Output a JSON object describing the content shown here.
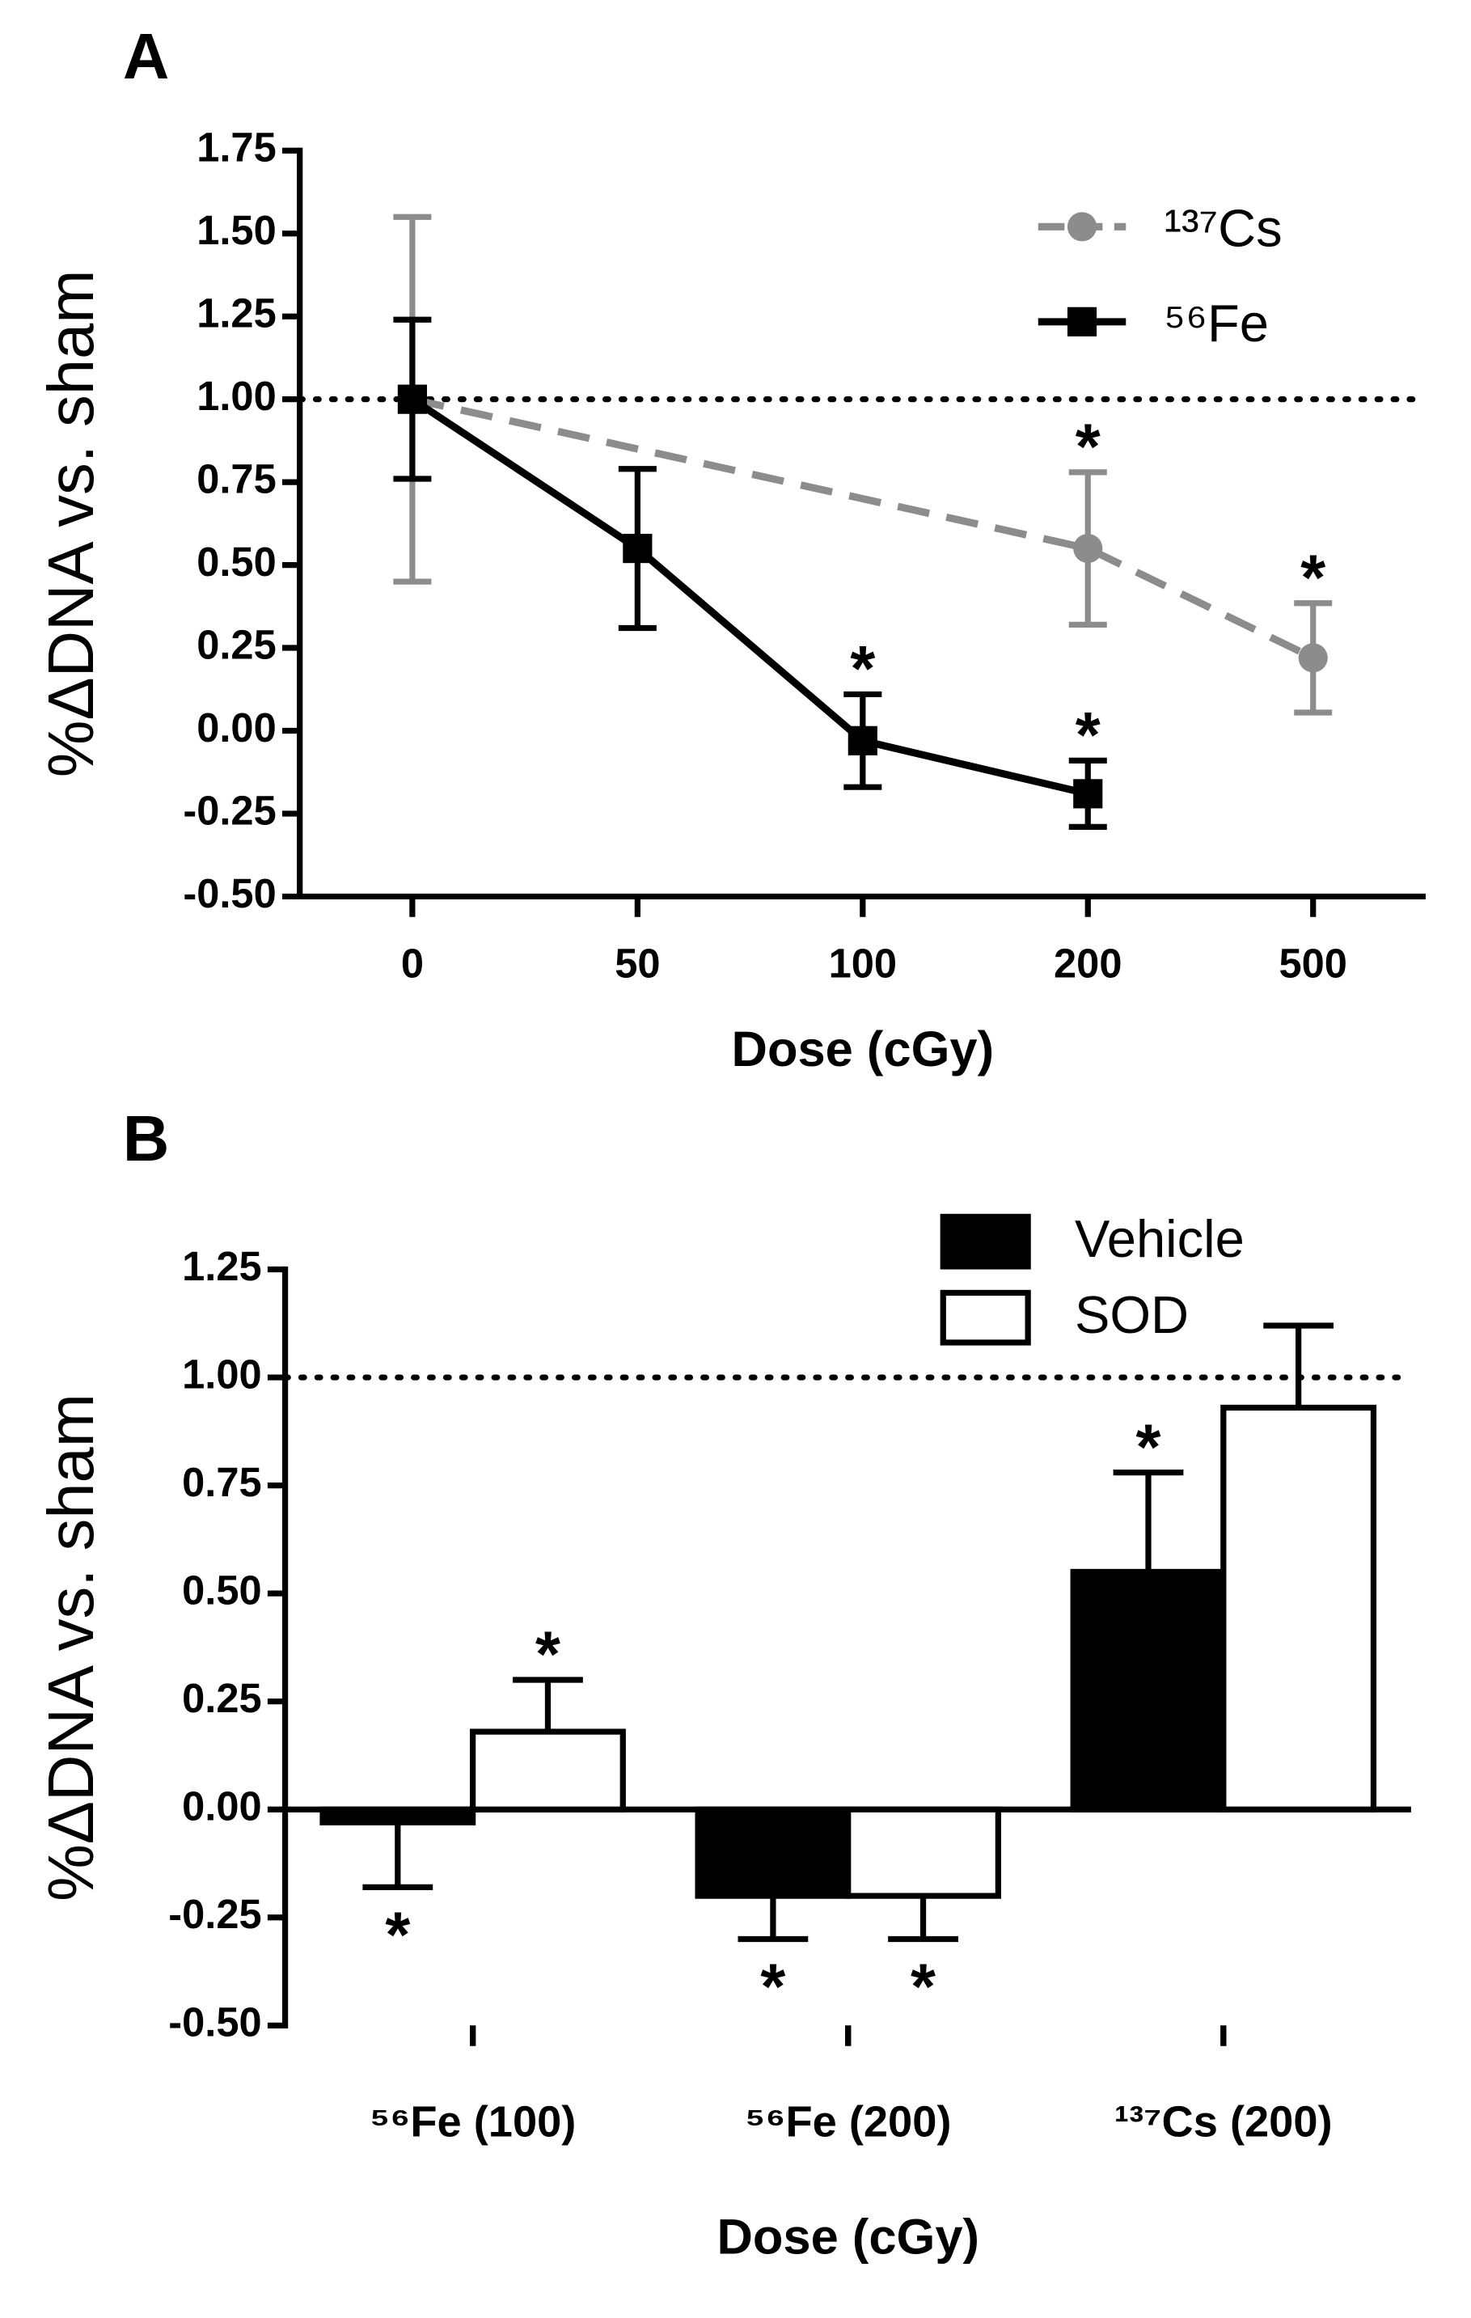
{
  "chart_data": [
    {
      "type": "line",
      "panel": "A",
      "xlabel": "Dose (cGy)",
      "ylabel": "%ΔDNA vs. sham",
      "categories": [
        "0",
        "50",
        "100",
        "200",
        "500"
      ],
      "ylim": [
        -0.5,
        1.75
      ],
      "yticks": [
        {
          "value": -0.5,
          "label": "-0.50"
        },
        -0.25,
        {
          "value": 0,
          "label": "0.00"
        },
        0.25,
        {
          "value": 0.5,
          "label": "0.50"
        },
        0.75,
        {
          "value": 1,
          "label": "1.00"
        },
        1.25,
        {
          "value": 1.5,
          "label": "1.50"
        },
        1.75
      ],
      "reference_line": 1,
      "series": [
        {
          "name": "¹³⁷Cs",
          "color": "#8c8c8c",
          "marker": "circle",
          "dashed": true,
          "x": [
            "0",
            "200",
            "500"
          ],
          "values": [
            1.0,
            0.55,
            0.22
          ],
          "errors": [
            0.55,
            0.23,
            0.165
          ],
          "significance": [
            null,
            "*",
            "*"
          ]
        },
        {
          "name": "⁵⁶Fe",
          "color": "#000000",
          "marker": "square",
          "dashed": false,
          "x": [
            "0",
            "50",
            "100",
            "200"
          ],
          "values": [
            1.0,
            0.55,
            -0.03,
            -0.19
          ],
          "errors": [
            0.24,
            0.24,
            0.14,
            0.1
          ],
          "significance": [
            null,
            null,
            "*",
            "*"
          ]
        }
      ]
    },
    {
      "type": "bar",
      "panel": "B",
      "xlabel": "Dose (cGy)",
      "ylabel": "%ΔDNA vs. sham",
      "categories": [
        "⁵⁶Fe (100)",
        "⁵⁶Fe (200)",
        "¹³⁷Cs (200)"
      ],
      "ylim": [
        -0.5,
        1.25
      ],
      "yticks": [
        {
          "value": -0.5,
          "label": "-0.50"
        },
        -0.25,
        {
          "value": 0,
          "label": "0.00"
        },
        0.25,
        {
          "value": 0.5,
          "label": "0.50"
        },
        0.75,
        {
          "value": 1,
          "label": "1.00"
        },
        1.25
      ],
      "reference_line": 1,
      "series": [
        {
          "name": "Vehicle",
          "color": "#000000",
          "values": [
            -0.03,
            -0.2,
            0.55
          ],
          "errors": [
            0.15,
            0.1,
            0.23
          ],
          "significance": [
            "*",
            "*",
            "*"
          ]
        },
        {
          "name": "SOD",
          "color": "#ffffff",
          "values": [
            0.18,
            -0.2,
            0.93
          ],
          "errors": [
            0.12,
            0.1,
            0.19
          ],
          "significance": [
            "*",
            "*",
            null
          ]
        }
      ]
    }
  ]
}
